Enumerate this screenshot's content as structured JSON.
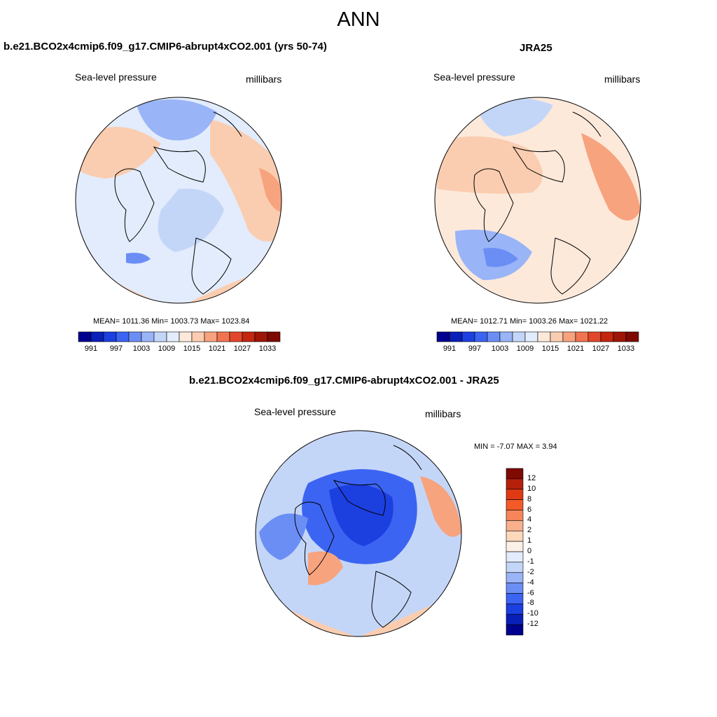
{
  "figure": {
    "title": "ANN"
  },
  "panels": [
    {
      "id": "model",
      "title": "b.e21.BCO2x4cmip6.f09_g17.CMIP6-abrupt4xCO2.001 (yrs 50-74)",
      "left_label": "Sea-level pressure",
      "right_label": "millibars",
      "stats": "MEAN= 1011.36  Min= 1003.73  Max= 1023.84",
      "colorbar_ticks": [
        "991",
        "997",
        "1003",
        "1009",
        "1015",
        "1021",
        "1027",
        "1033"
      ]
    },
    {
      "id": "obs",
      "title": "JRA25",
      "left_label": "Sea-level pressure",
      "right_label": "millibars",
      "stats": "MEAN= 1012.71  Min= 1003.26  Max= 1021.22",
      "colorbar_ticks": [
        "991",
        "997",
        "1003",
        "1009",
        "1015",
        "1021",
        "1027",
        "1033"
      ]
    },
    {
      "id": "diff",
      "title": "b.e21.BCO2x4cmip6.f09_g17.CMIP6-abrupt4xCO2.001 - JRA25",
      "left_label": "Sea-level pressure",
      "right_label": "millibars",
      "stats": "MIN =  -7.07 MAX =   3.94",
      "colorbar_ticks": [
        "12",
        "10",
        "8",
        "6",
        "4",
        "2",
        "1",
        "0",
        "-1",
        "-2",
        "-4",
        "-6",
        "-8",
        "-10",
        "-12"
      ]
    }
  ],
  "colorbars": {
    "absolute_colors": [
      "#00008f",
      "#0a1fb8",
      "#1c3fe0",
      "#3c64f2",
      "#6b8ef5",
      "#99b4f7",
      "#c4d6f8",
      "#e2ecfc",
      "#fde9da",
      "#fbcdb0",
      "#f7a37e",
      "#f17451",
      "#e3472b",
      "#c4260f",
      "#9e1606",
      "#7e0a02"
    ],
    "difference_colors": [
      "#7e0a02",
      "#b5200a",
      "#e03a14",
      "#f45a28",
      "#f6865a",
      "#f9b08c",
      "#fcd8bd",
      "#fdf0e6",
      "#e2ecfc",
      "#c4d6f8",
      "#99b4f7",
      "#6b8ef5",
      "#3c64f2",
      "#1c3fe0",
      "#0a1fb8",
      "#00008f"
    ]
  },
  "map_colors": {
    "model_field": [
      "#e2ecfc",
      "#fbcdb0",
      "#f7a37e",
      "#99b4f7",
      "#6b8ef5",
      "#c4d6f8"
    ],
    "obs_field": [
      "#fde9da",
      "#fbcdb0",
      "#f7a37e",
      "#99b4f7",
      "#6b8ef5",
      "#c4d6f8"
    ],
    "diff_field": [
      "#c4d6f8",
      "#6b8ef5",
      "#3c64f2",
      "#1c3fe0",
      "#fbcdb0",
      "#f7a37e"
    ]
  }
}
